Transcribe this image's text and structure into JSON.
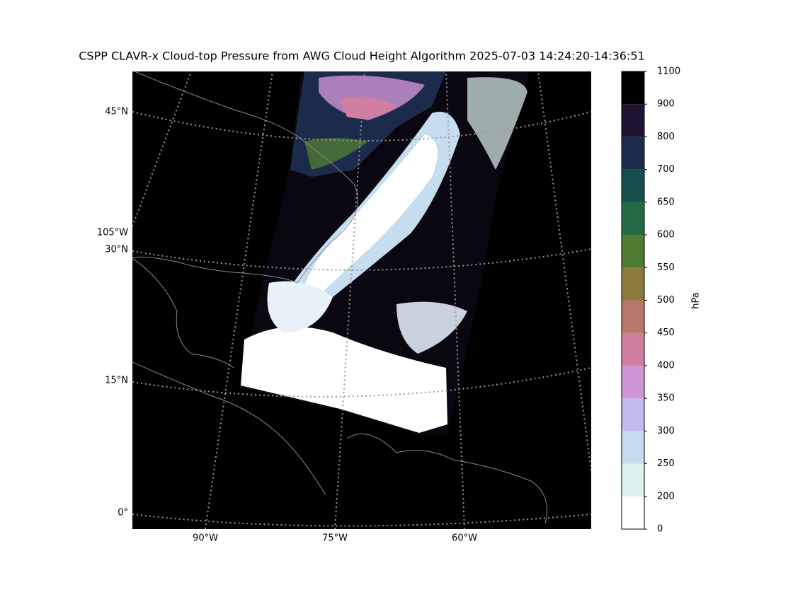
{
  "title": "CSPP CLAVR-x Cloud-top Pressure from AWG Cloud Height Algorithm 2025-07-03 14:24:20-14:36:51",
  "map": {
    "lat_labels": [
      "45°N",
      "30°N",
      "15°N",
      "0°"
    ],
    "lon_labels": [
      "105°W",
      "90°W",
      "75°W",
      "60°W"
    ]
  },
  "colorbar": {
    "label": "hPa",
    "ticks": [
      0,
      200,
      250,
      300,
      350,
      400,
      450,
      500,
      550,
      600,
      650,
      700,
      800,
      900,
      1100
    ],
    "colors": [
      "#ffffff",
      "#ddf2ee",
      "#c6ddf0",
      "#c4b9ef",
      "#d095d7",
      "#d17fa0",
      "#b7776a",
      "#8a7a3c",
      "#4f7a32",
      "#236b45",
      "#174e4d",
      "#1c2b4b",
      "#1f1530",
      "#000000"
    ]
  }
}
